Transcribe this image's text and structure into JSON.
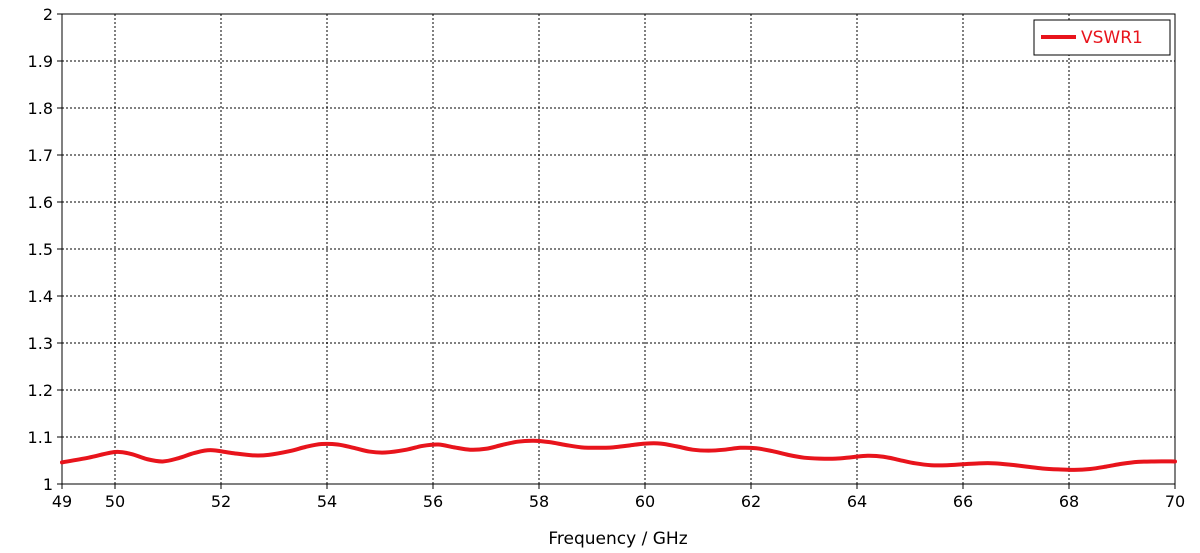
{
  "chart_data": {
    "type": "line",
    "title": "",
    "xlabel": "Frequency / GHz",
    "ylabel": "",
    "xlim": [
      49,
      70
    ],
    "ylim": [
      1,
      2
    ],
    "x_ticks": [
      49,
      50,
      52,
      54,
      56,
      58,
      60,
      62,
      64,
      66,
      68,
      70
    ],
    "x_tick_labels": [
      "49",
      "50",
      "52",
      "54",
      "56",
      "58",
      "60",
      "62",
      "64",
      "66",
      "68",
      "70"
    ],
    "y_ticks": [
      1,
      1.1,
      1.2,
      1.3,
      1.4,
      1.5,
      1.6,
      1.7,
      1.8,
      1.9,
      2
    ],
    "y_tick_labels": [
      "1",
      "1.1",
      "1.2",
      "1.3",
      "1.4",
      "1.5",
      "1.6",
      "1.7",
      "1.8",
      "1.9",
      "2"
    ],
    "grid": true,
    "legend_position": "top-right",
    "series": [
      {
        "name": "VSWR1",
        "color": "#e8141c",
        "x": [
          49.0,
          49.5,
          50.0,
          50.3,
          50.6,
          50.9,
          51.2,
          51.5,
          51.8,
          52.2,
          52.6,
          52.9,
          53.3,
          53.6,
          53.9,
          54.2,
          54.5,
          54.8,
          55.1,
          55.5,
          55.8,
          56.1,
          56.4,
          56.7,
          57.0,
          57.3,
          57.6,
          57.9,
          58.2,
          58.5,
          58.8,
          59.1,
          59.4,
          59.7,
          60.0,
          60.3,
          60.6,
          60.9,
          61.2,
          61.5,
          61.8,
          62.1,
          62.4,
          62.7,
          63.0,
          63.3,
          63.6,
          63.9,
          64.2,
          64.5,
          64.8,
          65.1,
          65.4,
          65.7,
          66.0,
          66.3,
          66.6,
          66.9,
          67.2,
          67.5,
          67.8,
          68.1,
          68.4,
          68.7,
          69.0,
          69.3,
          69.6,
          70.0
        ],
        "values": [
          1.046,
          1.056,
          1.068,
          1.064,
          1.053,
          1.048,
          1.055,
          1.066,
          1.072,
          1.066,
          1.061,
          1.062,
          1.07,
          1.079,
          1.085,
          1.084,
          1.077,
          1.069,
          1.067,
          1.073,
          1.081,
          1.084,
          1.078,
          1.073,
          1.075,
          1.083,
          1.09,
          1.092,
          1.089,
          1.083,
          1.078,
          1.077,
          1.078,
          1.082,
          1.086,
          1.086,
          1.08,
          1.073,
          1.071,
          1.073,
          1.077,
          1.076,
          1.07,
          1.062,
          1.056,
          1.054,
          1.054,
          1.057,
          1.06,
          1.058,
          1.051,
          1.044,
          1.04,
          1.04,
          1.042,
          1.044,
          1.044,
          1.041,
          1.037,
          1.033,
          1.031,
          1.03,
          1.032,
          1.037,
          1.043,
          1.047,
          1.048,
          1.048
        ]
      }
    ]
  }
}
